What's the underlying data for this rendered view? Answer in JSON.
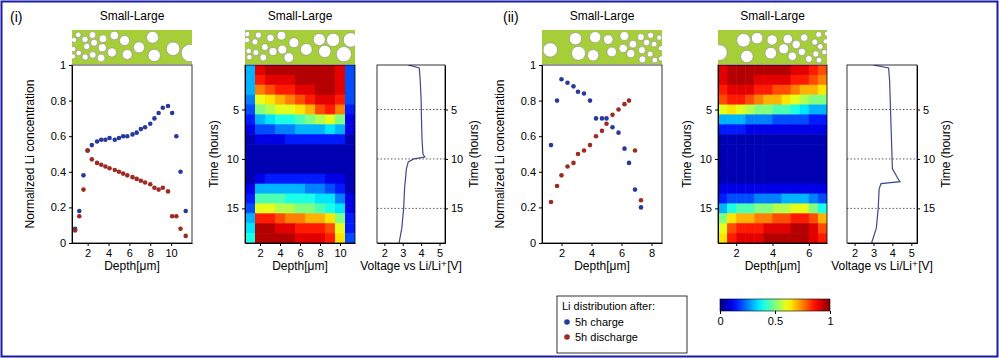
{
  "chart_data": [
    {
      "type": "scatter",
      "title": "Small-Large",
      "annotations": [
        "(i)"
      ],
      "xlabel": "Depth[μm]",
      "ylabel": "Normalized Li concentration",
      "x": [
        0.8,
        1.2,
        1.6,
        2.0,
        2.4,
        2.9,
        3.3,
        3.7,
        4.1,
        4.6,
        5.0,
        5.4,
        5.8,
        6.3,
        6.7,
        7.1,
        7.5,
        8.0,
        8.4,
        8.8,
        9.2,
        9.7,
        10.1,
        10.5,
        10.9,
        11.4
      ],
      "series": [
        {
          "color": "#27399e",
          "marker": "circle",
          "values": [
            0.08,
            0.18,
            0.38,
            0.52,
            0.55,
            0.57,
            0.58,
            0.58,
            0.59,
            0.58,
            0.59,
            0.6,
            0.6,
            0.61,
            0.62,
            0.64,
            0.65,
            0.67,
            0.7,
            0.73,
            0.76,
            0.77,
            0.73,
            0.6,
            0.4,
            0.18
          ]
        },
        {
          "color": "#9e2a22",
          "marker": "circle",
          "values": [
            0.07,
            0.15,
            0.3,
            0.52,
            0.47,
            0.45,
            0.44,
            0.43,
            0.42,
            0.41,
            0.4,
            0.39,
            0.38,
            0.37,
            0.36,
            0.35,
            0.34,
            0.33,
            0.31,
            0.3,
            0.31,
            0.29,
            0.15,
            0.15,
            0.08,
            0.04
          ]
        }
      ],
      "xlim": [
        0.5,
        12
      ],
      "xticks": [
        2,
        4,
        6,
        8,
        10
      ],
      "ylim": [
        0,
        1
      ],
      "yticks": [
        0,
        0.2,
        0.4,
        0.6,
        0.8,
        1
      ]
    },
    {
      "type": "heatmap",
      "title": "Small-Large",
      "xlabel": "Depth[μm]",
      "ylabel": "Time (hours)",
      "x": [
        1,
        2,
        3,
        4,
        5,
        6,
        7,
        8,
        9,
        10,
        11
      ],
      "y": [
        1,
        2,
        3,
        4,
        5,
        6,
        7,
        8,
        9,
        10,
        11,
        12,
        13,
        14,
        15,
        16,
        17,
        18
      ],
      "cells": [
        [
          0.3,
          0.9,
          0.95,
          0.95,
          0.95,
          0.95,
          0.95,
          0.95,
          0.95,
          0.9,
          0.2
        ],
        [
          0.3,
          0.85,
          0.9,
          0.9,
          0.9,
          0.95,
          0.95,
          0.95,
          0.95,
          0.9,
          0.2
        ],
        [
          0.3,
          0.75,
          0.8,
          0.85,
          0.85,
          0.9,
          0.9,
          0.95,
          0.95,
          0.9,
          0.2
        ],
        [
          0.25,
          0.6,
          0.65,
          0.7,
          0.75,
          0.8,
          0.85,
          0.9,
          0.9,
          0.85,
          0.2
        ],
        [
          0.2,
          0.5,
          0.55,
          0.6,
          0.6,
          0.65,
          0.7,
          0.8,
          0.85,
          0.75,
          0.15
        ],
        [
          0.15,
          0.3,
          0.35,
          0.4,
          0.4,
          0.45,
          0.5,
          0.55,
          0.6,
          0.5,
          0.1
        ],
        [
          0.1,
          0.2,
          0.2,
          0.25,
          0.25,
          0.3,
          0.3,
          0.3,
          0.35,
          0.3,
          0.1
        ],
        [
          0.05,
          0.1,
          0.1,
          0.1,
          0.15,
          0.15,
          0.15,
          0.15,
          0.15,
          0.15,
          0.05
        ],
        [
          0.05,
          0.05,
          0.05,
          0.05,
          0.05,
          0.05,
          0.05,
          0.05,
          0.05,
          0.05,
          0.05
        ],
        [
          0.05,
          0.05,
          0.05,
          0.05,
          0.05,
          0.05,
          0.05,
          0.05,
          0.05,
          0.05,
          0.05
        ],
        [
          0.05,
          0.05,
          0.05,
          0.05,
          0.05,
          0.05,
          0.05,
          0.05,
          0.05,
          0.05,
          0.05
        ],
        [
          0.05,
          0.1,
          0.15,
          0.15,
          0.15,
          0.15,
          0.15,
          0.15,
          0.1,
          0.1,
          0.05
        ],
        [
          0.1,
          0.3,
          0.3,
          0.3,
          0.3,
          0.3,
          0.25,
          0.25,
          0.2,
          0.15,
          0.05
        ],
        [
          0.15,
          0.45,
          0.45,
          0.45,
          0.4,
          0.4,
          0.4,
          0.35,
          0.35,
          0.25,
          0.1
        ],
        [
          0.2,
          0.6,
          0.6,
          0.55,
          0.55,
          0.5,
          0.5,
          0.45,
          0.4,
          0.35,
          0.1
        ],
        [
          0.3,
          0.85,
          0.85,
          0.8,
          0.75,
          0.75,
          0.7,
          0.7,
          0.65,
          0.5,
          0.15
        ],
        [
          0.35,
          0.95,
          0.95,
          0.9,
          0.9,
          0.85,
          0.85,
          0.85,
          0.8,
          0.6,
          0.15
        ],
        [
          0.4,
          0.95,
          0.95,
          0.95,
          0.95,
          0.9,
          0.9,
          0.9,
          0.85,
          0.65,
          0.2
        ]
      ],
      "xlim": [
        0.5,
        11.5
      ],
      "xticks": [
        2,
        4,
        6,
        8,
        10
      ],
      "ylim": [
        0.5,
        18.5
      ],
      "yticks": [
        5,
        10,
        15
      ]
    },
    {
      "type": "line",
      "xlabel": "Voltage vs Li/Li⁺[V]",
      "ylabel": "Time (hours)",
      "y": [
        0.5,
        0.8,
        2,
        4,
        6,
        8,
        9.5,
        9.8,
        10,
        10.3,
        11,
        13,
        15,
        17,
        18.5
      ],
      "series": [
        {
          "color": "#3c4a8a",
          "values": [
            3.3,
            3.9,
            3.95,
            4.0,
            4.02,
            4.05,
            4.1,
            4.2,
            3.6,
            3.3,
            3.2,
            3.1,
            3.05,
            2.95,
            2.8
          ]
        }
      ],
      "xlim": [
        1.6,
        5.3
      ],
      "xticks": [
        2,
        3,
        4,
        5
      ],
      "ylim": [
        0.5,
        18.5
      ],
      "yticks": [
        5,
        10,
        15
      ],
      "grid": true
    },
    {
      "type": "scatter",
      "title": "Small-Large",
      "annotations": [
        "(ii)"
      ],
      "xlabel": "Depth[μm]",
      "ylabel": "Normalized Li concentration",
      "legend_title": "Li distribution after:",
      "legend": "bottom",
      "x": [
        1.3,
        1.7,
        2.0,
        2.4,
        2.8,
        3.1,
        3.5,
        3.9,
        4.3,
        4.7,
        5.0,
        5.4,
        5.8,
        6.2,
        6.5,
        6.9,
        7.3
      ],
      "series": [
        {
          "name": "5h charge",
          "color": "#27399e",
          "marker": "circle",
          "values": [
            0.55,
            0.8,
            0.92,
            0.9,
            0.88,
            0.85,
            0.84,
            0.8,
            0.7,
            0.7,
            0.7,
            0.65,
            0.62,
            0.53,
            0.45,
            0.3,
            0.2
          ]
        },
        {
          "name": "5h discharge",
          "color": "#9e2a22",
          "marker": "circle",
          "values": [
            0.23,
            0.32,
            0.38,
            0.43,
            0.45,
            0.5,
            0.52,
            0.55,
            0.6,
            0.63,
            0.67,
            0.72,
            0.75,
            0.78,
            0.8,
            0.52,
            0.24
          ]
        }
      ],
      "xlim": [
        0.7,
        8.7
      ],
      "xticks": [
        2,
        4,
        6,
        8
      ],
      "ylim": [
        0,
        1
      ],
      "yticks": [
        0,
        0.2,
        0.4,
        0.6,
        0.8,
        1
      ]
    },
    {
      "type": "heatmap",
      "title": "Small-Large",
      "xlabel": "Depth[μm]",
      "ylabel": "Time (hours)",
      "x": [
        1.25,
        1.75,
        2.25,
        2.75,
        3.25,
        3.75,
        4.25,
        4.75,
        5.25,
        5.75,
        6.25,
        6.75
      ],
      "y": [
        1,
        2,
        3,
        4,
        5,
        6,
        7,
        8,
        9,
        10,
        11,
        12,
        13,
        14,
        15,
        16,
        17,
        18
      ],
      "cells": [
        [
          0.9,
          0.95,
          0.95,
          0.95,
          0.95,
          0.95,
          0.95,
          0.95,
          0.9,
          0.9,
          0.85,
          0.8
        ],
        [
          0.9,
          0.95,
          0.95,
          0.95,
          0.9,
          0.9,
          0.9,
          0.9,
          0.85,
          0.85,
          0.8,
          0.75
        ],
        [
          0.85,
          0.9,
          0.9,
          0.9,
          0.85,
          0.85,
          0.8,
          0.8,
          0.75,
          0.7,
          0.7,
          0.65
        ],
        [
          0.8,
          0.85,
          0.85,
          0.8,
          0.75,
          0.7,
          0.7,
          0.65,
          0.6,
          0.55,
          0.5,
          0.5
        ],
        [
          0.6,
          0.65,
          0.6,
          0.55,
          0.5,
          0.5,
          0.45,
          0.45,
          0.4,
          0.35,
          0.3,
          0.3
        ],
        [
          0.3,
          0.3,
          0.3,
          0.25,
          0.25,
          0.25,
          0.2,
          0.2,
          0.2,
          0.2,
          0.15,
          0.15
        ],
        [
          0.15,
          0.15,
          0.15,
          0.1,
          0.1,
          0.1,
          0.1,
          0.1,
          0.1,
          0.1,
          0.1,
          0.1
        ],
        [
          0.05,
          0.05,
          0.05,
          0.05,
          0.05,
          0.05,
          0.05,
          0.05,
          0.05,
          0.05,
          0.05,
          0.05
        ],
        [
          0.05,
          0.05,
          0.05,
          0.05,
          0.05,
          0.05,
          0.05,
          0.05,
          0.05,
          0.05,
          0.05,
          0.05
        ],
        [
          0.05,
          0.05,
          0.05,
          0.05,
          0.05,
          0.05,
          0.05,
          0.05,
          0.05,
          0.05,
          0.05,
          0.05
        ],
        [
          0.05,
          0.05,
          0.05,
          0.05,
          0.05,
          0.05,
          0.05,
          0.05,
          0.05,
          0.05,
          0.05,
          0.05
        ],
        [
          0.05,
          0.05,
          0.05,
          0.05,
          0.05,
          0.05,
          0.05,
          0.05,
          0.05,
          0.05,
          0.05,
          0.05
        ],
        [
          0.1,
          0.1,
          0.1,
          0.1,
          0.1,
          0.1,
          0.1,
          0.1,
          0.1,
          0.1,
          0.1,
          0.1
        ],
        [
          0.15,
          0.2,
          0.2,
          0.2,
          0.25,
          0.25,
          0.25,
          0.3,
          0.3,
          0.3,
          0.25,
          0.2
        ],
        [
          0.3,
          0.4,
          0.45,
          0.45,
          0.5,
          0.5,
          0.55,
          0.55,
          0.6,
          0.6,
          0.5,
          0.4
        ],
        [
          0.5,
          0.65,
          0.7,
          0.7,
          0.75,
          0.75,
          0.8,
          0.8,
          0.85,
          0.85,
          0.8,
          0.7
        ],
        [
          0.6,
          0.8,
          0.85,
          0.85,
          0.85,
          0.9,
          0.9,
          0.9,
          0.95,
          0.95,
          0.9,
          0.8
        ],
        [
          0.65,
          0.85,
          0.9,
          0.9,
          0.9,
          0.95,
          0.95,
          0.95,
          0.95,
          0.95,
          0.9,
          0.85
        ]
      ],
      "xlim": [
        1,
        7
      ],
      "xticks": [
        2,
        4,
        6
      ],
      "ylim": [
        0.5,
        18.5
      ],
      "yticks": [
        5,
        10,
        15
      ],
      "colorbar": {
        "range": [
          0,
          1
        ],
        "ticks": [
          0,
          0.5,
          1
        ]
      }
    },
    {
      "type": "line",
      "xlabel": "Voltage vs Li/Li⁺[V]",
      "ylabel": "Time (hours)",
      "y": [
        0.5,
        0.8,
        2,
        5,
        8,
        11,
        12,
        12.3,
        12.5,
        13,
        15,
        17,
        18.5
      ],
      "series": [
        {
          "color": "#3c4a8a",
          "values": [
            3.0,
            3.8,
            3.85,
            3.9,
            3.95,
            4.0,
            4.3,
            4.4,
            3.4,
            3.3,
            3.25,
            3.15,
            2.9
          ]
        }
      ],
      "xlim": [
        1.6,
        5.3
      ],
      "xticks": [
        2,
        3,
        4,
        5
      ],
      "ylim": [
        0.5,
        18.5
      ],
      "yticks": [
        5,
        10,
        15
      ],
      "grid": true
    }
  ]
}
